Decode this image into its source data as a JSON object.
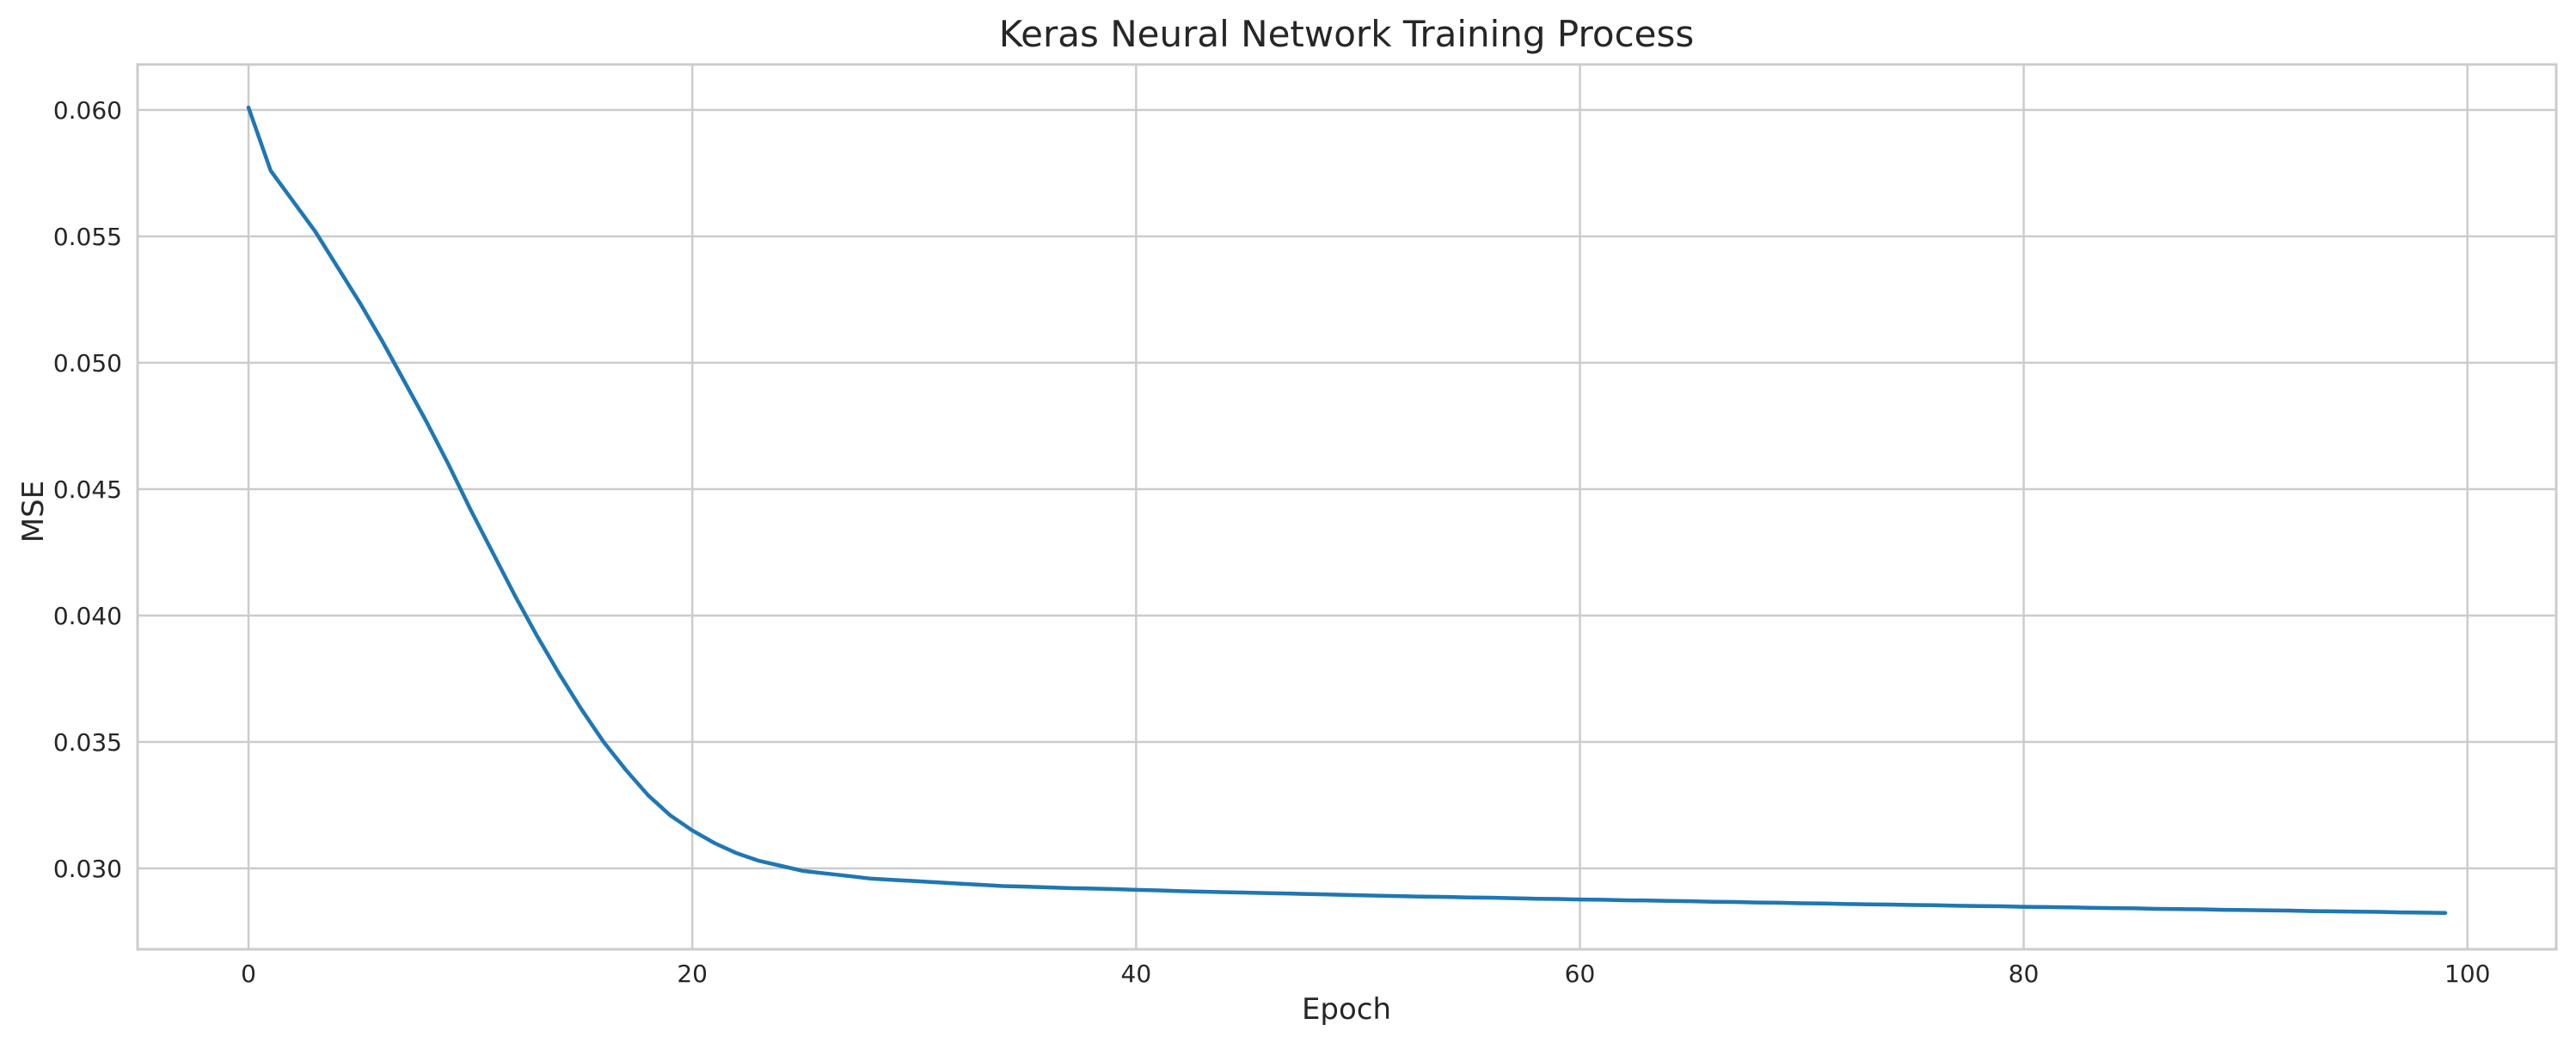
{
  "chart_data": {
    "type": "line",
    "title": "Keras Neural Network Training Process",
    "xlabel": "Epoch",
    "ylabel": "MSE",
    "xlim": [
      -5,
      104
    ],
    "ylim": [
      0.0268,
      0.0618
    ],
    "grid": true,
    "x_ticks": [
      0,
      20,
      40,
      60,
      80,
      100
    ],
    "x_tick_labels": [
      "0",
      "20",
      "40",
      "60",
      "80",
      "100"
    ],
    "y_ticks": [
      0.03,
      0.035,
      0.04,
      0.045,
      0.05,
      0.055,
      0.06
    ],
    "y_tick_labels": [
      "0.030",
      "0.035",
      "0.040",
      "0.045",
      "0.050",
      "0.055",
      "0.060"
    ],
    "series": [
      {
        "color": "#1f77b4",
        "x": [
          0,
          1,
          2,
          3,
          4,
          5,
          6,
          7,
          8,
          9,
          10,
          11,
          12,
          13,
          14,
          15,
          16,
          17,
          18,
          19,
          20,
          21,
          22,
          23,
          24,
          25,
          26,
          27,
          28,
          29,
          30,
          31,
          32,
          33,
          34,
          35,
          36,
          37,
          38,
          39,
          40,
          41,
          42,
          43,
          44,
          45,
          46,
          47,
          48,
          49,
          50,
          51,
          52,
          53,
          54,
          55,
          56,
          57,
          58,
          59,
          60,
          61,
          62,
          63,
          64,
          65,
          66,
          67,
          68,
          69,
          70,
          71,
          72,
          73,
          74,
          75,
          76,
          77,
          78,
          79,
          80,
          81,
          82,
          83,
          84,
          85,
          86,
          87,
          88,
          89,
          90,
          91,
          92,
          93,
          94,
          95,
          96,
          97,
          98,
          99
        ],
        "y": [
          0.0601,
          0.0576,
          0.0564,
          0.0552,
          0.0538,
          0.0524,
          0.0509,
          0.0493,
          0.0477,
          0.046,
          0.0442,
          0.0425,
          0.0408,
          0.0392,
          0.0377,
          0.0363,
          0.035,
          0.0339,
          0.0329,
          0.0321,
          0.0315,
          0.031,
          0.0306,
          0.0303,
          0.0301,
          0.0299,
          0.0298,
          0.0297,
          0.0296,
          0.02955,
          0.0295,
          0.02945,
          0.0294,
          0.02935,
          0.0293,
          0.02928,
          0.02925,
          0.02922,
          0.0292,
          0.02918,
          0.02915,
          0.02913,
          0.0291,
          0.02908,
          0.02906,
          0.02904,
          0.02902,
          0.029,
          0.02898,
          0.02896,
          0.02894,
          0.02892,
          0.0289,
          0.02888,
          0.02887,
          0.02885,
          0.02884,
          0.02882,
          0.0288,
          0.02879,
          0.02877,
          0.02876,
          0.02874,
          0.02873,
          0.02871,
          0.0287,
          0.02868,
          0.02867,
          0.02865,
          0.02864,
          0.02862,
          0.02861,
          0.02859,
          0.02858,
          0.02857,
          0.02855,
          0.02854,
          0.02852,
          0.02851,
          0.0285,
          0.02848,
          0.02847,
          0.02846,
          0.02844,
          0.02843,
          0.02842,
          0.0284,
          0.02839,
          0.02838,
          0.02836,
          0.02835,
          0.02834,
          0.02833,
          0.02831,
          0.0283,
          0.02829,
          0.02828,
          0.02826,
          0.02825,
          0.02824
        ]
      }
    ]
  }
}
